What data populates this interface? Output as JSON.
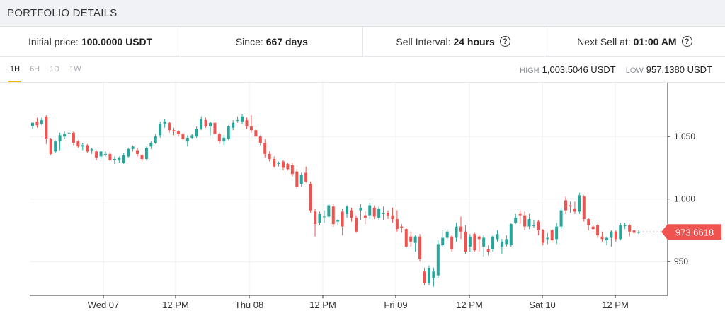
{
  "header": {
    "title": "PORTFOLIO DETAILS"
  },
  "stats": {
    "initial_label": "Initial price:",
    "initial_value": "100.0000 USDT",
    "since_label": "Since:",
    "since_value": "667 days",
    "interval_label": "Sell Interval:",
    "interval_value": "24 hours",
    "next_label": "Next Sell at:",
    "next_value": "01:00 AM",
    "help_icon": "?"
  },
  "ranges": [
    {
      "label": "1H",
      "active": true
    },
    {
      "label": "6H",
      "active": false
    },
    {
      "label": "1D",
      "active": false
    },
    {
      "label": "1W",
      "active": false
    }
  ],
  "high_low": {
    "high_label": "HIGH",
    "high_value": "1,003.5046 USDT",
    "low_label": "LOW",
    "low_value": "957.1380 USDT"
  },
  "chart_data": {
    "type": "candlestick",
    "x_tick_labels": [
      "Wed 07",
      "12 PM",
      "Thu 08",
      "12 PM",
      "Fri 09",
      "12 PM",
      "Sat 10",
      "12 PM"
    ],
    "y_tick_labels": [
      "1,050",
      "1,000",
      "950"
    ],
    "y_ticks": [
      1050,
      1000,
      950
    ],
    "ylim": [
      923,
      1093
    ],
    "current_price": 973.6618,
    "current_price_label": "973.6618",
    "up_color": "#26a69a",
    "down_color": "#ef5350",
    "grid": true,
    "candles": [
      [
        1058,
        1061,
        1056,
        1061
      ],
      [
        1062,
        1065,
        1057,
        1059
      ],
      [
        1060,
        1065,
        1059,
        1063
      ],
      [
        1066,
        1067,
        1044,
        1048
      ],
      [
        1048,
        1049,
        1035,
        1036
      ],
      [
        1038,
        1047,
        1037,
        1046
      ],
      [
        1046,
        1053,
        1039,
        1051
      ],
      [
        1050,
        1054,
        1048,
        1052
      ],
      [
        1053,
        1055,
        1051,
        1053
      ],
      [
        1053,
        1054,
        1043,
        1045
      ],
      [
        1046,
        1047,
        1041,
        1042
      ],
      [
        1042,
        1045,
        1039,
        1043
      ],
      [
        1043,
        1044,
        1037,
        1038
      ],
      [
        1039,
        1041,
        1036,
        1040
      ],
      [
        1038,
        1039,
        1031,
        1033
      ],
      [
        1034,
        1039,
        1032,
        1038
      ],
      [
        1036,
        1038,
        1034,
        1036
      ],
      [
        1036,
        1038,
        1030,
        1031
      ],
      [
        1031,
        1034,
        1028,
        1032
      ],
      [
        1031,
        1034,
        1029,
        1033
      ],
      [
        1029,
        1037,
        1028,
        1035
      ],
      [
        1034,
        1041,
        1033,
        1040
      ],
      [
        1040,
        1043,
        1038,
        1042
      ],
      [
        1039,
        1041,
        1034,
        1036
      ],
      [
        1035,
        1036,
        1030,
        1032
      ],
      [
        1032,
        1042,
        1031,
        1041
      ],
      [
        1042,
        1046,
        1040,
        1045
      ],
      [
        1045,
        1052,
        1044,
        1050
      ],
      [
        1051,
        1062,
        1049,
        1060
      ],
      [
        1060,
        1064,
        1057,
        1062
      ],
      [
        1061,
        1062,
        1053,
        1055
      ],
      [
        1055,
        1057,
        1051,
        1054
      ],
      [
        1054,
        1055,
        1050,
        1052
      ],
      [
        1052,
        1053,
        1047,
        1048
      ],
      [
        1046,
        1051,
        1042,
        1049
      ],
      [
        1049,
        1052,
        1048,
        1051
      ],
      [
        1050,
        1058,
        1049,
        1056
      ],
      [
        1056,
        1066,
        1055,
        1064
      ],
      [
        1063,
        1065,
        1057,
        1058
      ],
      [
        1058,
        1062,
        1051,
        1061
      ],
      [
        1061,
        1062,
        1050,
        1052
      ],
      [
        1052,
        1053,
        1044,
        1046
      ],
      [
        1046,
        1051,
        1043,
        1049
      ],
      [
        1048,
        1059,
        1047,
        1058
      ],
      [
        1057,
        1063,
        1055,
        1061
      ],
      [
        1063,
        1066,
        1061,
        1063
      ],
      [
        1062,
        1068,
        1060,
        1066
      ],
      [
        1063,
        1065,
        1056,
        1058
      ],
      [
        1058,
        1067,
        1053,
        1055
      ],
      [
        1055,
        1056,
        1049,
        1050
      ],
      [
        1050,
        1051,
        1043,
        1045
      ],
      [
        1045,
        1048,
        1033,
        1036
      ],
      [
        1036,
        1038,
        1030,
        1032
      ],
      [
        1032,
        1034,
        1025,
        1026
      ],
      [
        1028,
        1030,
        1026,
        1029
      ],
      [
        1030,
        1031,
        1023,
        1025
      ],
      [
        1028,
        1029,
        1023,
        1024
      ],
      [
        1027,
        1029,
        1018,
        1020
      ],
      [
        1022,
        1024,
        1008,
        1010
      ],
      [
        1012,
        1021,
        1010,
        1019
      ],
      [
        1021,
        1026,
        1013,
        1014
      ],
      [
        1012,
        1014,
        989,
        991
      ],
      [
        990,
        992,
        970,
        980
      ],
      [
        981,
        990,
        979,
        988
      ],
      [
        986,
        991,
        981,
        986
      ],
      [
        986,
        996,
        985,
        995
      ],
      [
        994,
        996,
        978,
        980
      ],
      [
        982,
        984,
        979,
        983
      ],
      [
        990,
        992,
        971,
        978
      ],
      [
        988,
        995,
        985,
        994
      ],
      [
        991,
        993,
        982,
        985
      ],
      [
        985,
        987,
        973,
        974
      ],
      [
        991,
        996,
        983,
        993
      ],
      [
        987,
        990,
        980,
        985
      ],
      [
        987,
        997,
        984,
        995
      ],
      [
        993,
        995,
        984,
        986
      ],
      [
        985,
        994,
        983,
        992
      ],
      [
        988,
        994,
        983,
        989
      ],
      [
        989,
        991,
        984,
        987
      ],
      [
        987,
        993,
        981,
        984
      ],
      [
        984,
        991,
        974,
        976
      ],
      [
        978,
        980,
        973,
        977
      ],
      [
        976,
        977,
        961,
        962
      ],
      [
        970,
        974,
        962,
        966
      ],
      [
        965,
        971,
        958,
        970
      ],
      [
        970,
        972,
        950,
        952
      ],
      [
        942,
        945,
        931,
        933
      ],
      [
        933,
        947,
        931,
        945
      ],
      [
        937,
        945,
        930,
        942
      ],
      [
        939,
        967,
        937,
        964
      ],
      [
        963,
        975,
        962,
        969
      ],
      [
        969,
        976,
        967,
        974
      ],
      [
        970,
        971,
        958,
        960
      ],
      [
        969,
        981,
        966,
        978
      ],
      [
        978,
        986,
        968,
        974
      ],
      [
        974,
        979,
        956,
        958
      ],
      [
        962,
        972,
        958,
        970
      ],
      [
        972,
        973,
        958,
        959
      ],
      [
        970,
        971,
        958,
        968
      ],
      [
        962,
        971,
        954,
        969
      ],
      [
        960,
        963,
        955,
        958
      ],
      [
        960,
        971,
        958,
        970
      ],
      [
        968,
        975,
        966,
        972
      ],
      [
        962,
        968,
        956,
        966
      ],
      [
        964,
        971,
        962,
        968
      ],
      [
        963,
        981,
        962,
        980
      ],
      [
        981,
        988,
        980,
        985
      ],
      [
        988,
        991,
        980,
        987
      ],
      [
        987,
        990,
        975,
        978
      ],
      [
        978,
        988,
        976,
        984
      ],
      [
        979,
        983,
        977,
        979
      ],
      [
        982,
        983,
        971,
        975
      ],
      [
        975,
        976,
        963,
        965
      ],
      [
        968,
        973,
        964,
        969
      ],
      [
        975,
        976,
        965,
        967
      ],
      [
        968,
        981,
        964,
        978
      ],
      [
        978,
        993,
        976,
        991
      ],
      [
        999,
        1002,
        988,
        991
      ],
      [
        995,
        998,
        989,
        994
      ],
      [
        992,
        998,
        988,
        990
      ],
      [
        990,
        1005,
        988,
        1003
      ],
      [
        1002,
        1003,
        982,
        984
      ],
      [
        984,
        985,
        975,
        979
      ],
      [
        978,
        979,
        973,
        976
      ],
      [
        979,
        980,
        969,
        971
      ],
      [
        970,
        974,
        966,
        968
      ],
      [
        967,
        970,
        963,
        969
      ],
      [
        969,
        975,
        962,
        974
      ],
      [
        974,
        975,
        966,
        968
      ],
      [
        968,
        981,
        967,
        979
      ],
      [
        979,
        981,
        976,
        979
      ],
      [
        979,
        980,
        970,
        974
      ],
      [
        975,
        977,
        970,
        973
      ],
      [
        973,
        975,
        972,
        973.6618
      ]
    ]
  }
}
